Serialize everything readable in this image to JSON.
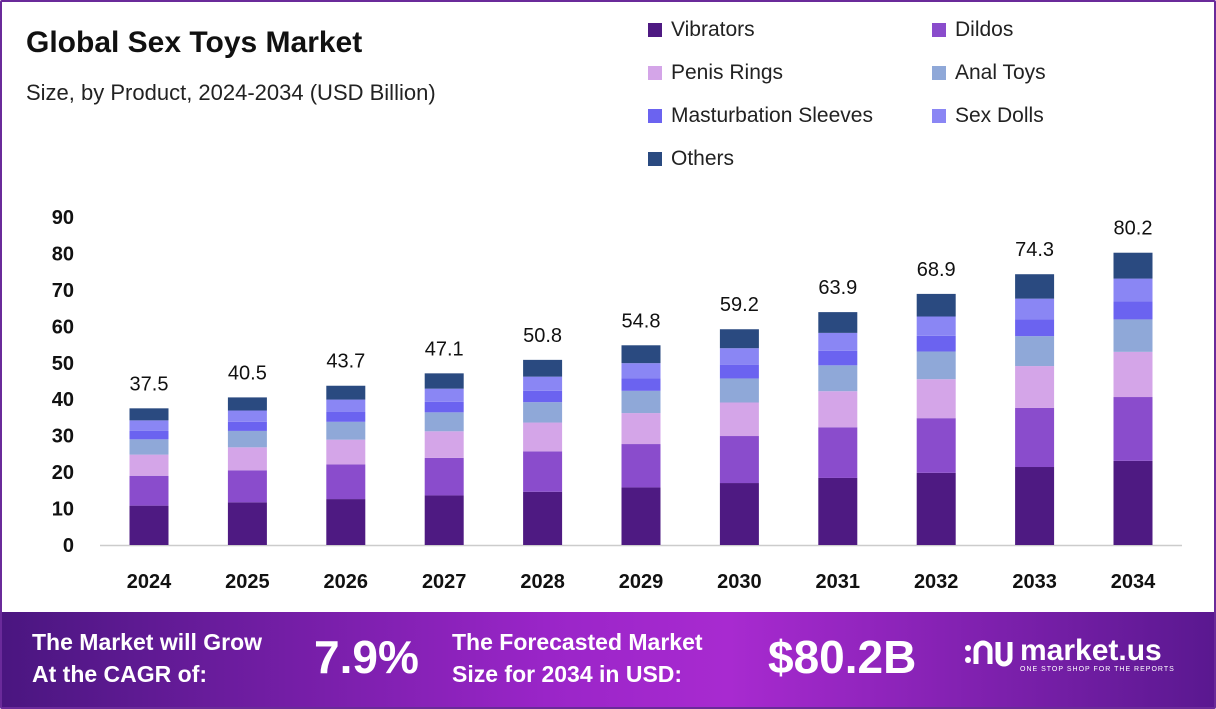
{
  "header": {
    "title": "Global Sex Toys Market",
    "subtitle": "Size, by Product, 2024-2034 (USD Billion)"
  },
  "chart_data": {
    "type": "bar",
    "stacked": true,
    "categories": [
      "2024",
      "2025",
      "2026",
      "2027",
      "2028",
      "2029",
      "2030",
      "2031",
      "2032",
      "2033",
      "2034"
    ],
    "totals": [
      37.5,
      40.5,
      43.7,
      47.1,
      50.8,
      54.8,
      59.2,
      63.9,
      68.9,
      74.3,
      80.2
    ],
    "series": [
      {
        "name": "Vibrators",
        "color": "#4e1a82",
        "values": [
          10.8,
          11.7,
          12.6,
          13.6,
          14.6,
          15.8,
          17.0,
          18.4,
          19.8,
          21.4,
          23.1
        ]
      },
      {
        "name": "Dildos",
        "color": "#8a4ccc",
        "values": [
          8.2,
          8.8,
          9.5,
          10.3,
          11.1,
          11.9,
          12.9,
          13.9,
          15.0,
          16.2,
          17.5
        ]
      },
      {
        "name": "Penis Rings",
        "color": "#d4a5e8",
        "values": [
          5.8,
          6.3,
          6.8,
          7.3,
          7.9,
          8.5,
          9.2,
          9.9,
          10.7,
          11.5,
          12.4
        ]
      },
      {
        "name": "Anal Toys",
        "color": "#8fa8d8",
        "values": [
          4.2,
          4.5,
          4.9,
          5.2,
          5.6,
          6.1,
          6.6,
          7.1,
          7.6,
          8.2,
          8.9
        ]
      },
      {
        "name": "Masturbation Sleeves",
        "color": "#6b63f0",
        "values": [
          2.3,
          2.5,
          2.7,
          2.9,
          3.1,
          3.4,
          3.7,
          4.0,
          4.3,
          4.6,
          5.0
        ]
      },
      {
        "name": "Sex Dolls",
        "color": "#8a86f4",
        "values": [
          2.9,
          3.1,
          3.4,
          3.6,
          3.9,
          4.2,
          4.6,
          4.9,
          5.3,
          5.7,
          6.2
        ]
      },
      {
        "name": "Others",
        "color": "#2a4a80",
        "values": [
          3.3,
          3.6,
          3.8,
          4.2,
          4.6,
          4.9,
          5.2,
          5.7,
          6.2,
          6.7,
          7.1
        ]
      }
    ],
    "yticks": [
      "0",
      "10",
      "20",
      "30",
      "40",
      "50",
      "60",
      "70",
      "80",
      "90"
    ],
    "ylim": [
      0,
      90
    ],
    "grid": false,
    "legend": "top-right"
  },
  "footer": {
    "cagr_label_1": "The Market will Grow",
    "cagr_label_2": "At the CAGR of:",
    "cagr_value": "7.9%",
    "forecast_label_1": "The Forecasted Market",
    "forecast_label_2": "Size for 2034 in USD:",
    "forecast_value": "$80.2B",
    "logo_text": "market.us",
    "logo_tagline": "ONE STOP SHOP FOR THE REPORTS"
  }
}
